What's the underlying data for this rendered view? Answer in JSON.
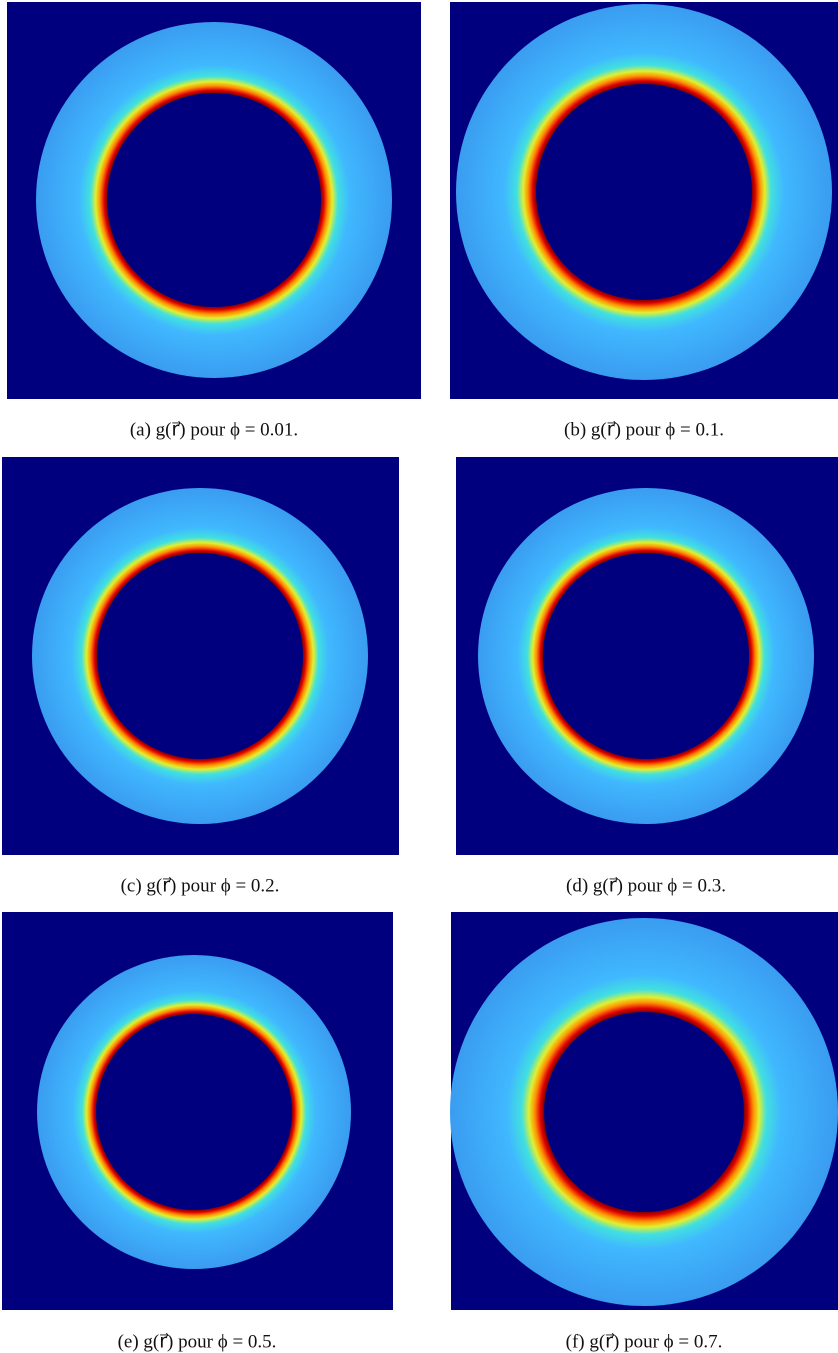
{
  "figure": {
    "panels": [
      {
        "caption": "(a) g(r⃗) pour ϕ = 0.01."
      },
      {
        "caption": "(b) g(r⃗) pour ϕ = 0.1."
      },
      {
        "caption": "(c) g(r⃗) pour ϕ = 0.2."
      },
      {
        "caption": "(d) g(r⃗) pour ϕ = 0.3."
      },
      {
        "caption": "(e) g(r⃗) pour ϕ = 0.5."
      },
      {
        "caption": "(f) g(r⃗) pour ϕ = 0.7."
      }
    ]
  }
}
